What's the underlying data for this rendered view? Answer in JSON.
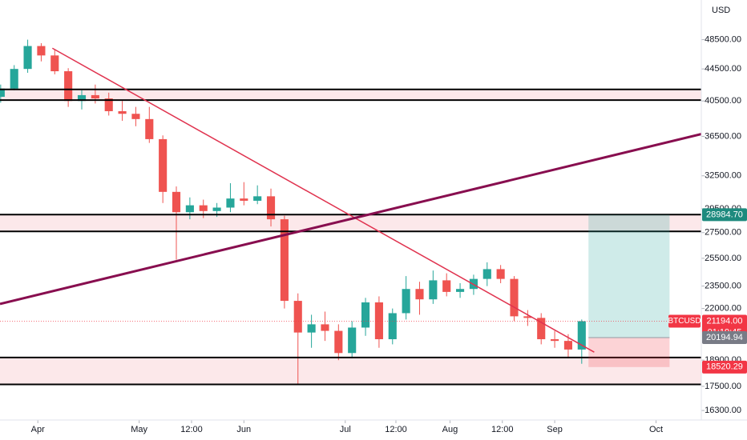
{
  "chart_data": {
    "type": "candlestick",
    "symbol": "BTCUSD",
    "currency": "USD",
    "x": [
      -11,
      -7,
      -3,
      1,
      5,
      9,
      13,
      17,
      21,
      25,
      29,
      33,
      37,
      41,
      45,
      49,
      53,
      57,
      61,
      65,
      69,
      73,
      77,
      81,
      85,
      89,
      93,
      97,
      101,
      105,
      109,
      113,
      117,
      121,
      125,
      129,
      133,
      137,
      141,
      145,
      149,
      153,
      157,
      161
    ],
    "open": [
      41000,
      42000,
      44500,
      47600,
      46300,
      44200,
      40500,
      41200,
      40800,
      39300,
      39000,
      38400,
      36200,
      31000,
      29200,
      29800,
      29300,
      29600,
      30400,
      30200,
      30600,
      28600,
      22500,
      20500,
      21000,
      20600,
      19300,
      20800,
      22400,
      20100,
      21700,
      23300,
      22600,
      23900,
      23100,
      23300,
      24000,
      24700,
      24000,
      21500,
      21400,
      20100,
      20000,
      19500
    ],
    "high": [
      42500,
      45000,
      48500,
      48000,
      47200,
      44600,
      41800,
      42500,
      41500,
      40500,
      39800,
      39800,
      36600,
      31500,
      30500,
      30300,
      30000,
      31800,
      31900,
      31600,
      31300,
      28900,
      23000,
      21600,
      21800,
      21000,
      21200,
      22700,
      22800,
      22000,
      24200,
      23800,
      24600,
      24400,
      23700,
      24300,
      25200,
      25000,
      24200,
      21900,
      21700,
      20600,
      20400,
      21300
    ],
    "low": [
      40300,
      41800,
      44000,
      45500,
      43800,
      39800,
      39500,
      40200,
      38800,
      38200,
      37600,
      35800,
      30000,
      25400,
      28600,
      28700,
      28800,
      29200,
      29800,
      29900,
      28000,
      22000,
      17600,
      19600,
      20000,
      18900,
      19000,
      20300,
      19600,
      19800,
      21300,
      21600,
      22300,
      22800,
      22700,
      22900,
      23500,
      23700,
      21200,
      20900,
      19800,
      19600,
      19000,
      18700
    ],
    "close": [
      42000,
      44500,
      47600,
      46300,
      44200,
      40500,
      41200,
      40800,
      39300,
      39000,
      38400,
      36200,
      31000,
      29200,
      29800,
      29300,
      29600,
      30400,
      30200,
      30600,
      28600,
      22500,
      20500,
      21000,
      20600,
      19300,
      20800,
      22400,
      20100,
      21700,
      23300,
      22600,
      23900,
      23100,
      23300,
      24000,
      24700,
      24000,
      21500,
      21400,
      20100,
      20000,
      19500,
      21194
    ],
    "up_color": "#26a69a",
    "down_color": "#ef5350",
    "xlim": [
      -11.2,
      196.4
    ],
    "xticks": [
      {
        "value": 0,
        "label": "Apr"
      },
      {
        "value": 30,
        "label": "May"
      },
      {
        "value": 45.5,
        "label": "12:00"
      },
      {
        "value": 61,
        "label": "Jun"
      },
      {
        "value": 91,
        "label": "Jul"
      },
      {
        "value": 106,
        "label": "12:00"
      },
      {
        "value": 122,
        "label": "Aug"
      },
      {
        "value": 137.5,
        "label": "12:00"
      },
      {
        "value": 153,
        "label": "Sep"
      },
      {
        "value": 183,
        "label": "Oct"
      }
    ],
    "ylim": [
      15850,
      54500
    ],
    "log_scale": true,
    "yticks": [
      {
        "value": 48500,
        "label": "48500.00"
      },
      {
        "value": 44500,
        "label": "44500.00"
      },
      {
        "value": 40500,
        "label": "40500.00"
      },
      {
        "value": 36500,
        "label": "36500.00"
      },
      {
        "value": 32500,
        "label": "32500.00"
      },
      {
        "value": 29500,
        "label": "29500.00"
      },
      {
        "value": 27500,
        "label": "27500.00"
      },
      {
        "value": 25500,
        "label": "25500.00"
      },
      {
        "value": 23500,
        "label": "23500.00"
      },
      {
        "value": 22000,
        "label": "22000.00"
      },
      {
        "value": 18900,
        "label": "18900.00"
      },
      {
        "value": 17500,
        "label": "17500.00"
      },
      {
        "value": 16300,
        "label": "16300.00"
      }
    ],
    "levels": [
      {
        "upper": 41900,
        "lower": 40600
      },
      {
        "upper": 29000,
        "lower": 27600
      },
      {
        "upper": 19050,
        "lower": 17600
      }
    ],
    "level_color": "#000000",
    "zone_color": "#fce8ea",
    "trendlines": [
      {
        "x": [
          4.3,
          164.7
        ],
        "y": [
          47300,
          19350
        ],
        "color": "#e0334f"
      },
      {
        "x": [
          -11.2,
          198.1
        ],
        "y": [
          22300,
          36900
        ],
        "color": "#880e4f"
      }
    ],
    "position": {
      "x": [
        163,
        187
      ],
      "target": 28984.7,
      "entry": 20194.94,
      "stop": 18520.29,
      "value_labels": [
        "28984.70",
        "20194.94",
        "18520.29"
      ]
    },
    "last_price": 21194,
    "last_price_label": "21194.00",
    "countdown": "01:19:45"
  }
}
